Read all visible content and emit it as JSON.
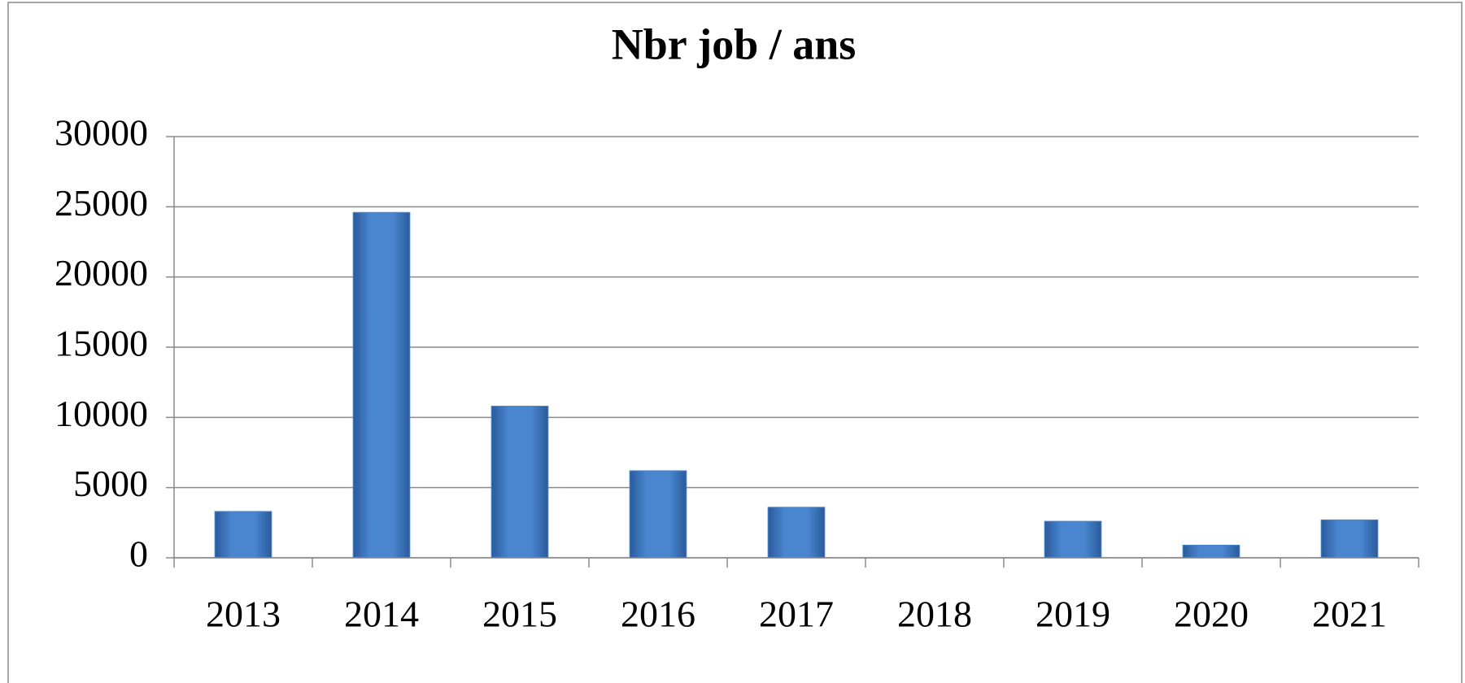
{
  "chart_data": {
    "type": "bar",
    "title": "Nbr job / ans",
    "categories": [
      "2013",
      "2014",
      "2015",
      "2016",
      "2017",
      "2018",
      "2019",
      "2020",
      "2021"
    ],
    "values": [
      3300,
      24600,
      10800,
      6200,
      3600,
      0,
      2600,
      900,
      2700
    ],
    "color": "#4a86d0",
    "ylim": [
      0,
      30000
    ],
    "yticks": [
      0,
      5000,
      10000,
      15000,
      20000,
      25000,
      30000
    ],
    "grid": true
  }
}
